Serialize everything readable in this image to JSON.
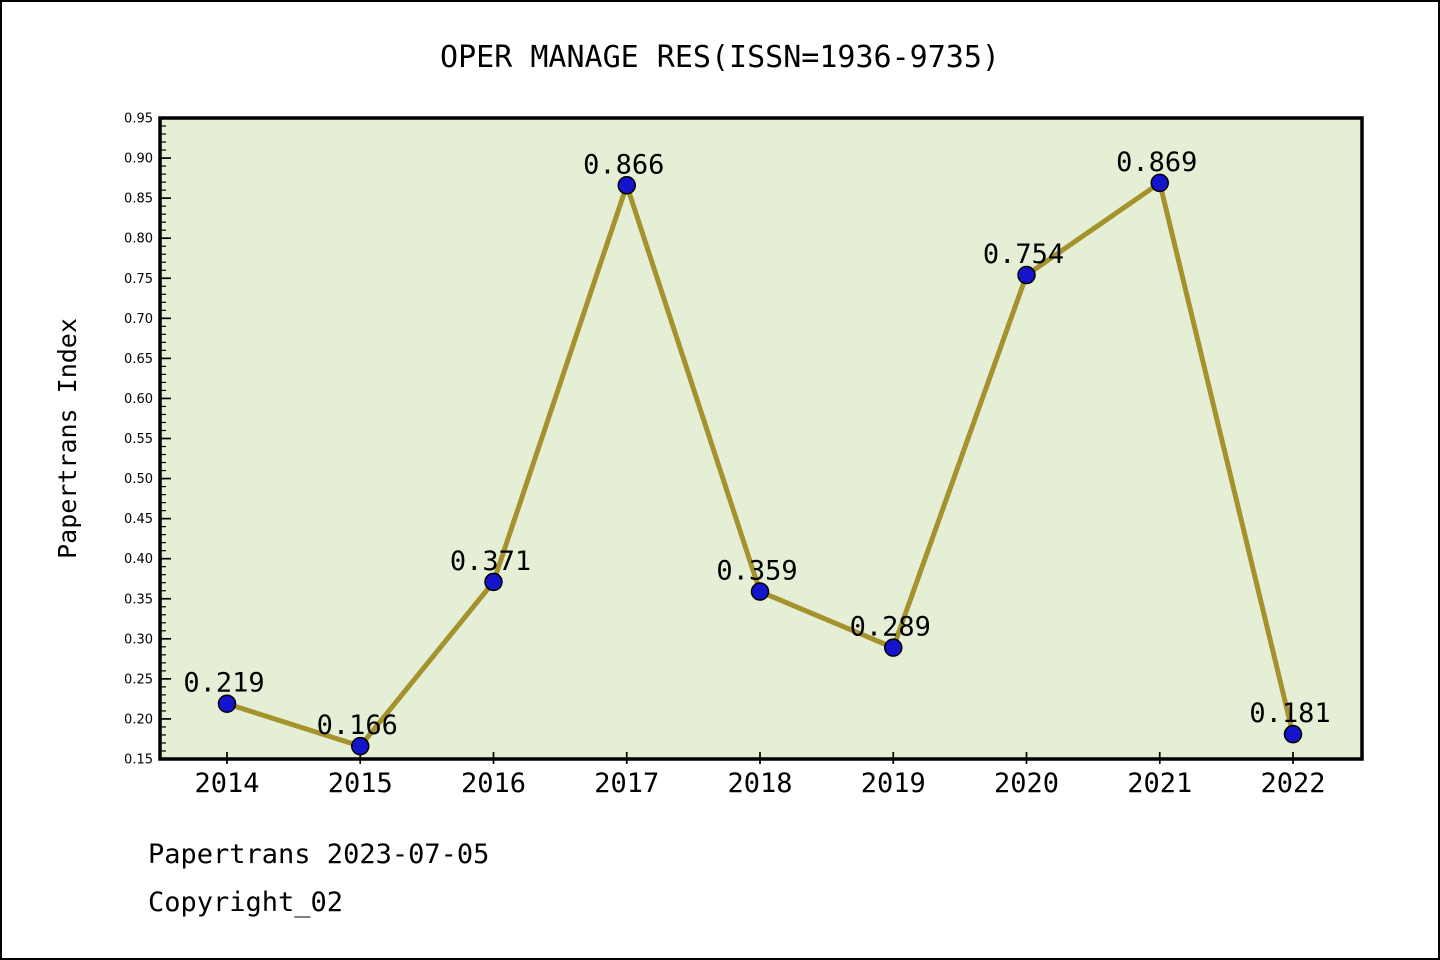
{
  "page": {
    "title": "OPER MANAGE RES(ISSN=1936-9735)",
    "footer_line1": "Papertrans 2023-07-05",
    "footer_line2": "Copyright_02"
  },
  "chart_data": {
    "type": "line",
    "title": "OPER MANAGE RES(ISSN=1936-9735)",
    "xlabel": "",
    "ylabel": "Papertrans Index",
    "categories": [
      "2014",
      "2015",
      "2016",
      "2017",
      "2018",
      "2019",
      "2020",
      "2021",
      "2022"
    ],
    "values": [
      0.219,
      0.166,
      0.371,
      0.866,
      0.359,
      0.289,
      0.754,
      0.869,
      0.181
    ],
    "point_labels": [
      "0.219",
      "0.166",
      "0.371",
      "0.866",
      "0.359",
      "0.289",
      "0.754",
      "0.869",
      "0.181"
    ],
    "ylim": [
      0.15,
      0.95
    ],
    "ytick_step": 0.05,
    "yminor_step": 0.01,
    "ytick_labels": [
      "0.15",
      "0.20",
      "0.25",
      "0.30",
      "0.35",
      "0.40",
      "0.45",
      "0.50",
      "0.55",
      "0.60",
      "0.65",
      "0.70",
      "0.75",
      "0.80",
      "0.85",
      "0.90",
      "0.95"
    ],
    "grid": false,
    "legend": "none",
    "colors": {
      "line": "#a6922c",
      "marker": "#1414cd",
      "marker_edge": "#000000",
      "plot_bg": "#e4efd6",
      "frame": "#000000",
      "text": "#000000",
      "page_bg": "#ffffff",
      "border": "#000000"
    }
  }
}
